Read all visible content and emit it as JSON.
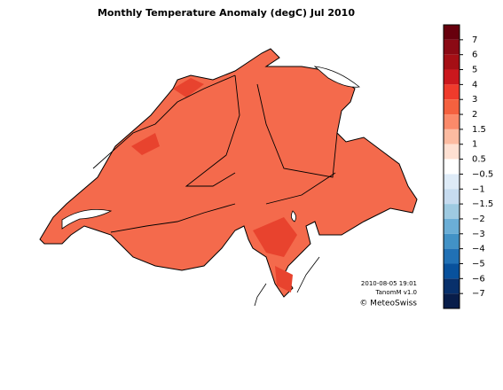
{
  "map": {
    "title": "Monthly Temperature Anomaly (degC) Jul 2010",
    "colorbar": {
      "labels": [
        "7",
        "6",
        "5",
        "4",
        "3",
        "2",
        "1.5",
        "1",
        "0.5",
        "−0.5",
        "−1",
        "−1.5",
        "−2",
        "−3",
        "−4",
        "−5",
        "−6",
        "−7"
      ],
      "colors": [
        "#67000d",
        "#8b0a14",
        "#a50f15",
        "#cb181d",
        "#ef3b2c",
        "#f4613f",
        "#fb8a6a",
        "#fcbba1",
        "#fee0d2",
        "#ffffff",
        "#deebf7",
        "#c6dbef",
        "#9ecae1",
        "#6baed6",
        "#4292c6",
        "#2171b5",
        "#08519c",
        "#08306b",
        "#081d4a"
      ]
    },
    "footer": {
      "date": "2010-08-05 19:01",
      "version": "TanomM v1.0",
      "credit": "© MeteoSwiss"
    }
  }
}
